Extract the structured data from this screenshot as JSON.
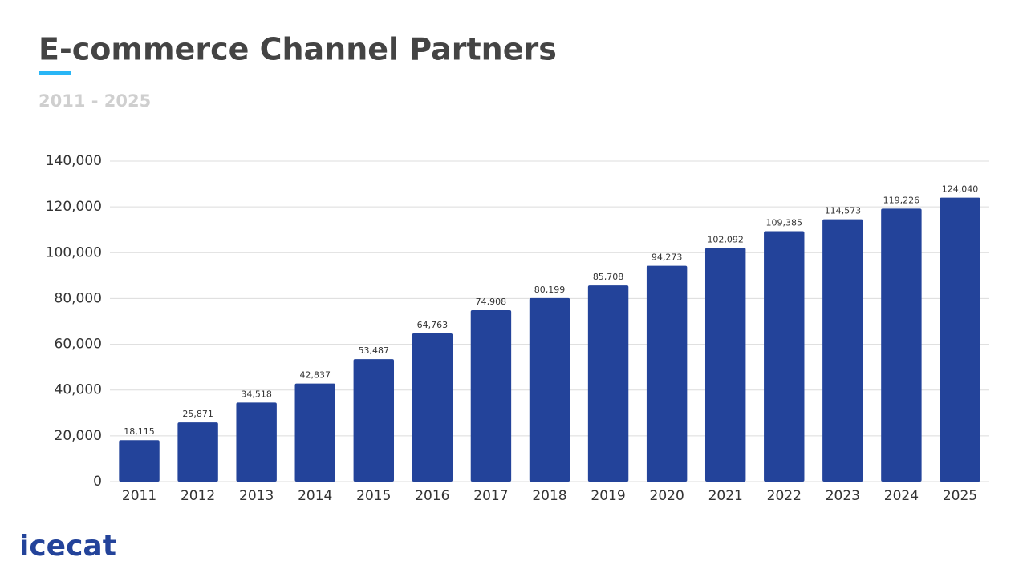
{
  "chart_data": {
    "type": "bar",
    "title": "E-commerce Channel Partners",
    "subtitle": "2011 - 2025",
    "categories": [
      "2011",
      "2012",
      "2013",
      "2014",
      "2015",
      "2016",
      "2017",
      "2018",
      "2019",
      "2020",
      "2021",
      "2022",
      "2023",
      "2024",
      "2025"
    ],
    "values": [
      18115,
      25871,
      34518,
      42837,
      53487,
      64763,
      74908,
      80199,
      85708,
      94273,
      102092,
      109385,
      114573,
      119226,
      124040
    ],
    "value_labels": [
      "18,115",
      "25,871",
      "34,518",
      "42,837",
      "53,487",
      "64,763",
      "74,908",
      "80,199",
      "85,708",
      "94,273",
      "102,092",
      "109,385",
      "114,573",
      "119,226",
      "124,040"
    ],
    "color": "#23439a",
    "ylim": [
      0,
      140000
    ],
    "yticks": [
      0,
      {
        "value": 20000,
        "label": "20,000"
      },
      {
        "value": 40000,
        "label": "40,000"
      },
      {
        "value": 60000,
        "label": "60,000"
      },
      {
        "value": 80000,
        "label": "80,000"
      },
      {
        "value": 100000,
        "label": "100,000"
      },
      {
        "value": 120000,
        "label": "120,000"
      },
      {
        "value": 140000,
        "label": "140,000"
      }
    ],
    "grid": true
  },
  "logo": "icecat"
}
